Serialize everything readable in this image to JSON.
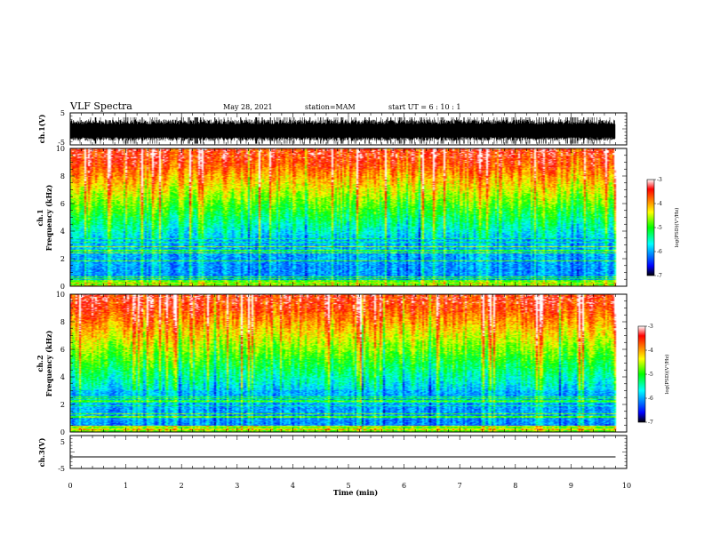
{
  "header": {
    "title": "VLF Spectra",
    "date": "May 28, 2021",
    "station": "station=MAM",
    "start": "start  UT =  6 : 10 : 1"
  },
  "chart_data": [
    {
      "type": "line",
      "panel": "waveform",
      "ylabel": "ch.1(V)",
      "ylim": [
        -5,
        5
      ],
      "yticks": [
        "5",
        "-5"
      ],
      "xlim": [
        0,
        10
      ],
      "trace": "dense noisy waveform filling roughly -4.5 to 3.5 V over 0-9.8 min"
    },
    {
      "type": "heatmap",
      "panel": "spectrogram",
      "label_channel": "ch.1",
      "ylabel": "Frequency (kHz)",
      "ylim": [
        0,
        10
      ],
      "yticks": [
        "0",
        "2",
        "4",
        "6",
        "8",
        "10"
      ],
      "xlim": [
        0,
        10
      ],
      "data_end_min": 9.8,
      "colorbar": {
        "label": "log(PSD)(V²/Hz)",
        "ticks": [
          "-3",
          "-4",
          "-5",
          "-6",
          "-7"
        ],
        "range": [
          -7,
          -3
        ],
        "colors": [
          "#000000",
          "#0000ff",
          "#00ffff",
          "#00ff00",
          "#ffff00",
          "#ff0000",
          "#ffffff"
        ]
      },
      "low_band_top_khz": 3.5
    },
    {
      "type": "heatmap",
      "panel": "spectrogram",
      "label_channel": "ch.2",
      "ylabel": "Frequency (kHz)",
      "ylim": [
        0,
        10
      ],
      "yticks": [
        "0",
        "2",
        "4",
        "6",
        "8",
        "10"
      ],
      "xlim": [
        0,
        10
      ],
      "data_end_min": 9.8,
      "colorbar": {
        "label": "log(PSD)(V²/Hz)",
        "ticks": [
          "-3",
          "-4",
          "-5",
          "-6",
          "-7"
        ],
        "range": [
          -7,
          -3
        ],
        "colors": [
          "#000000",
          "#0000ff",
          "#00ffff",
          "#00ff00",
          "#ffff00",
          "#ff0000",
          "#ffffff"
        ]
      },
      "low_band_top_khz": 3.0
    },
    {
      "type": "line",
      "panel": "waveform",
      "ylabel": "ch.3(V)",
      "ylim": [
        -5,
        5
      ],
      "yticks": [
        "5",
        "-5"
      ],
      "xlim": [
        0,
        10
      ],
      "xlabel": "Time  (min)",
      "xticks": [
        "0",
        "1",
        "2",
        "3",
        "4",
        "5",
        "6",
        "7",
        "8",
        "9",
        "10"
      ],
      "trace_level_v": -1.5
    }
  ]
}
